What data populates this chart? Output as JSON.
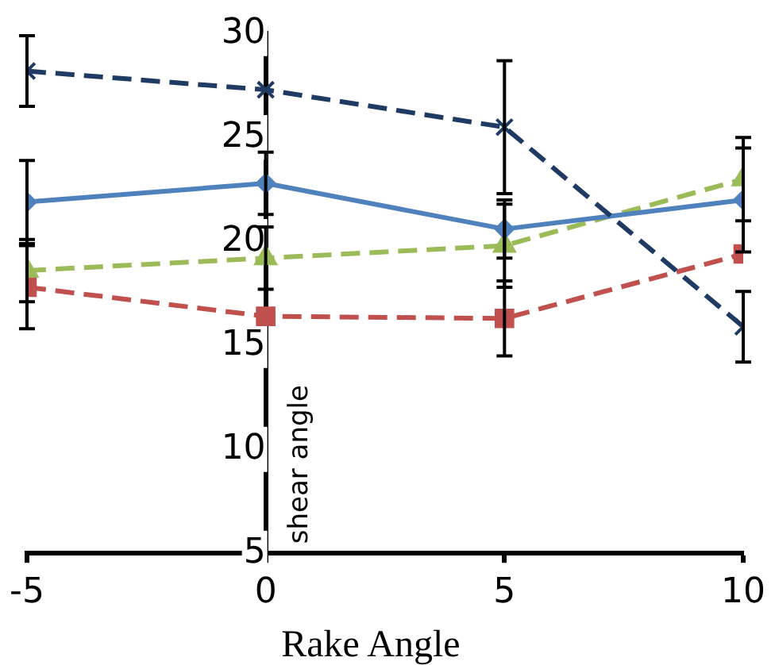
{
  "chart_data": {
    "type": "line",
    "xlabel": "Rake Angle",
    "ylabel": "shear angle",
    "x": [
      -5,
      0,
      5,
      10
    ],
    "xlim": [
      -5,
      10
    ],
    "xticks": [
      -5,
      0,
      5,
      10
    ],
    "ylim": [
      5,
      30
    ],
    "yticks": [
      5,
      10,
      15,
      20,
      25,
      30
    ],
    "grid": false,
    "legend": false,
    "series": [
      {
        "color": "#1f3b63",
        "marker": "cross",
        "line_style": "dashed",
        "values": [
          28.2,
          27.3,
          25.5,
          15.9
        ],
        "errors": [
          1.7,
          null,
          3.2,
          1.7
        ]
      },
      {
        "color": "#4f81bd",
        "marker": "diamond",
        "line_style": "solid",
        "values": [
          21.9,
          22.8,
          20.6,
          22.0
        ],
        "errors": [
          2,
          1.5,
          1.4,
          2.5
        ]
      },
      {
        "color": "#9bbb59",
        "marker": "triangle",
        "line_style": "dashed",
        "values": [
          18.6,
          19.2,
          19.8,
          23.0
        ],
        "errors": [
          1.5,
          1.5,
          2,
          2
        ]
      },
      {
        "color": "#c0504d",
        "marker": "square",
        "line_style": "dashed",
        "values": [
          17.8,
          16.4,
          16.3,
          19.4
        ],
        "errors": [
          2,
          null,
          1.8,
          null
        ]
      }
    ]
  }
}
